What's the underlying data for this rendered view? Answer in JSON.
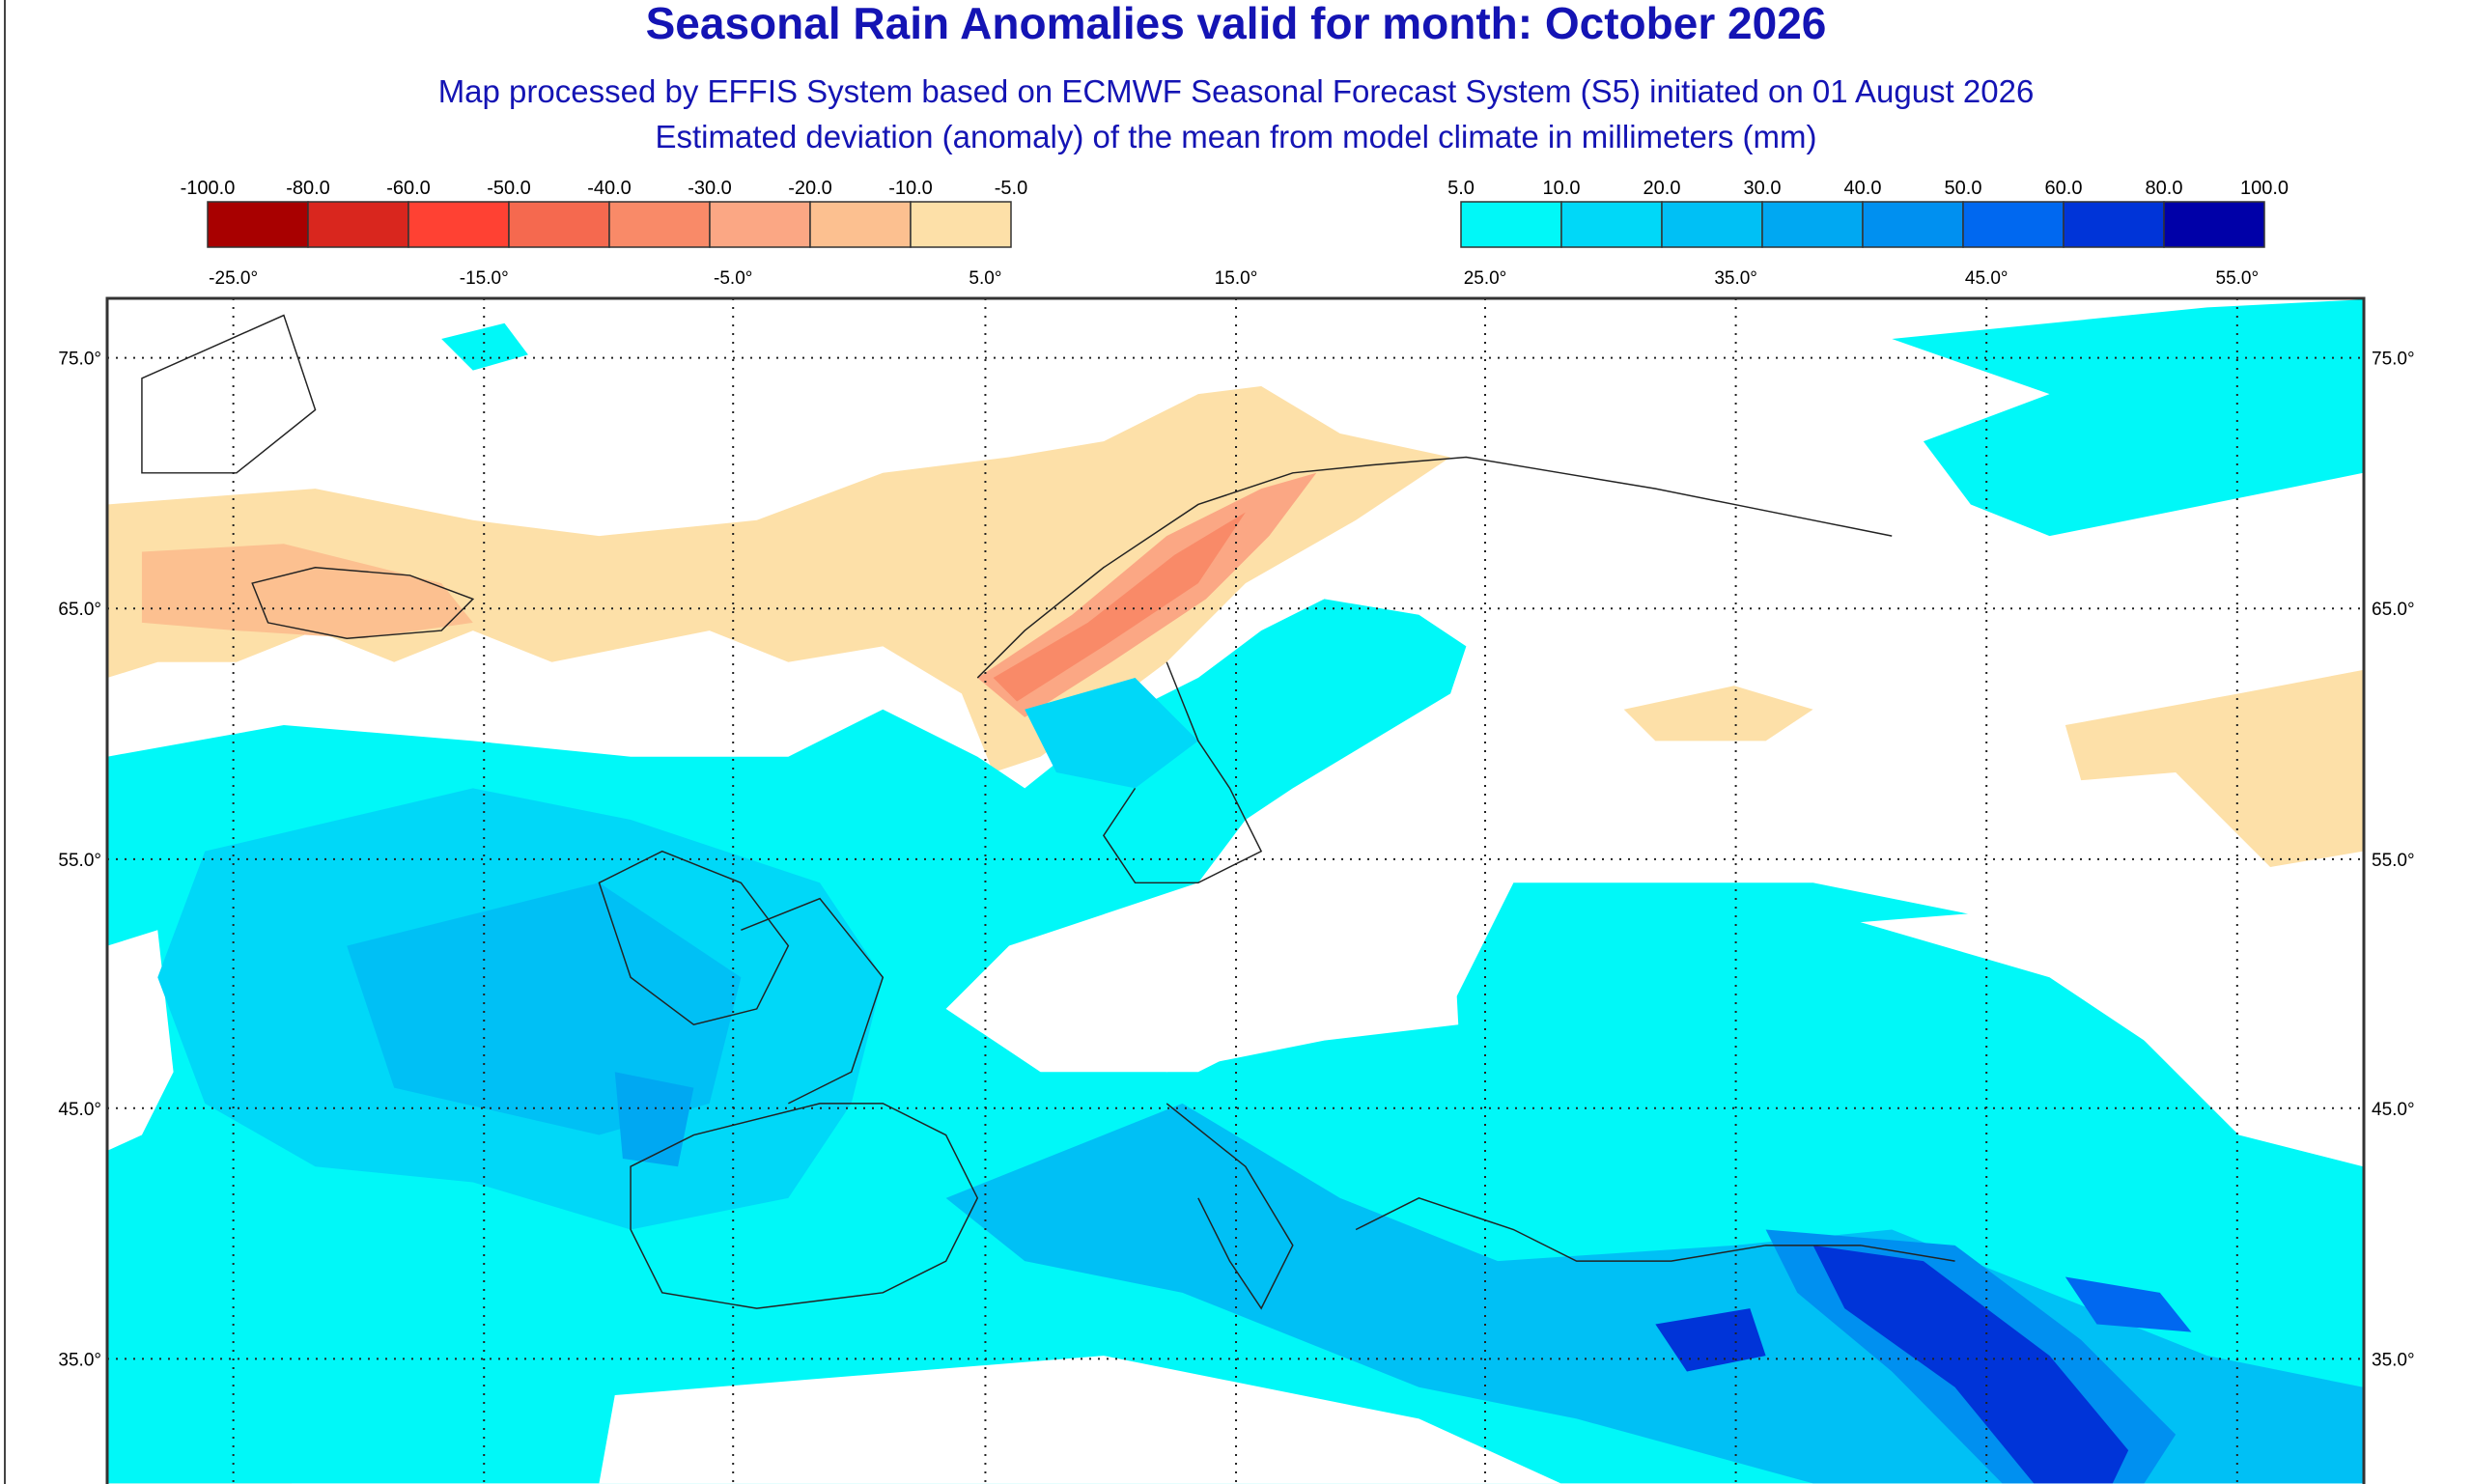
{
  "header": {
    "title": "Seasonal Rain Anomalies valid for month: October 2026",
    "subtitle": "Map processed by EFFIS System based on ECMWF Seasonal Forecast System (S5) initiated on 01 August 2026",
    "description": "Estimated deviation (anomaly) of the mean from model climate in millimeters (mm)"
  },
  "legend": {
    "negative": {
      "labels": [
        "-100.0",
        "-80.0",
        "-60.0",
        "-50.0",
        "-40.0",
        "-30.0",
        "-20.0",
        "-10.0",
        "-5.0"
      ],
      "colors": [
        "#a80000",
        "#d9261e",
        "#ff4133",
        "#f5694f",
        "#f98a68",
        "#fba784",
        "#fcc090",
        "#fde0a8"
      ]
    },
    "positive": {
      "labels": [
        "5.0",
        "10.0",
        "20.0",
        "30.0",
        "40.0",
        "50.0",
        "60.0",
        "80.0",
        "100.0"
      ],
      "colors": [
        "#00f8f8",
        "#00d8f8",
        "#00c0f5",
        "#00a8f2",
        "#0090f0",
        "#0068f0",
        "#0034d8",
        "#0000a8"
      ]
    }
  },
  "map": {
    "longitude_labels": [
      "-25.0°",
      "-15.0°",
      "-5.0°",
      "5.0°",
      "15.0°",
      "25.0°",
      "35.0°",
      "45.0°",
      "55.0°"
    ],
    "latitude_labels": [
      "75.0°",
      "65.0°",
      "55.0°",
      "45.0°",
      "35.0°"
    ]
  }
}
